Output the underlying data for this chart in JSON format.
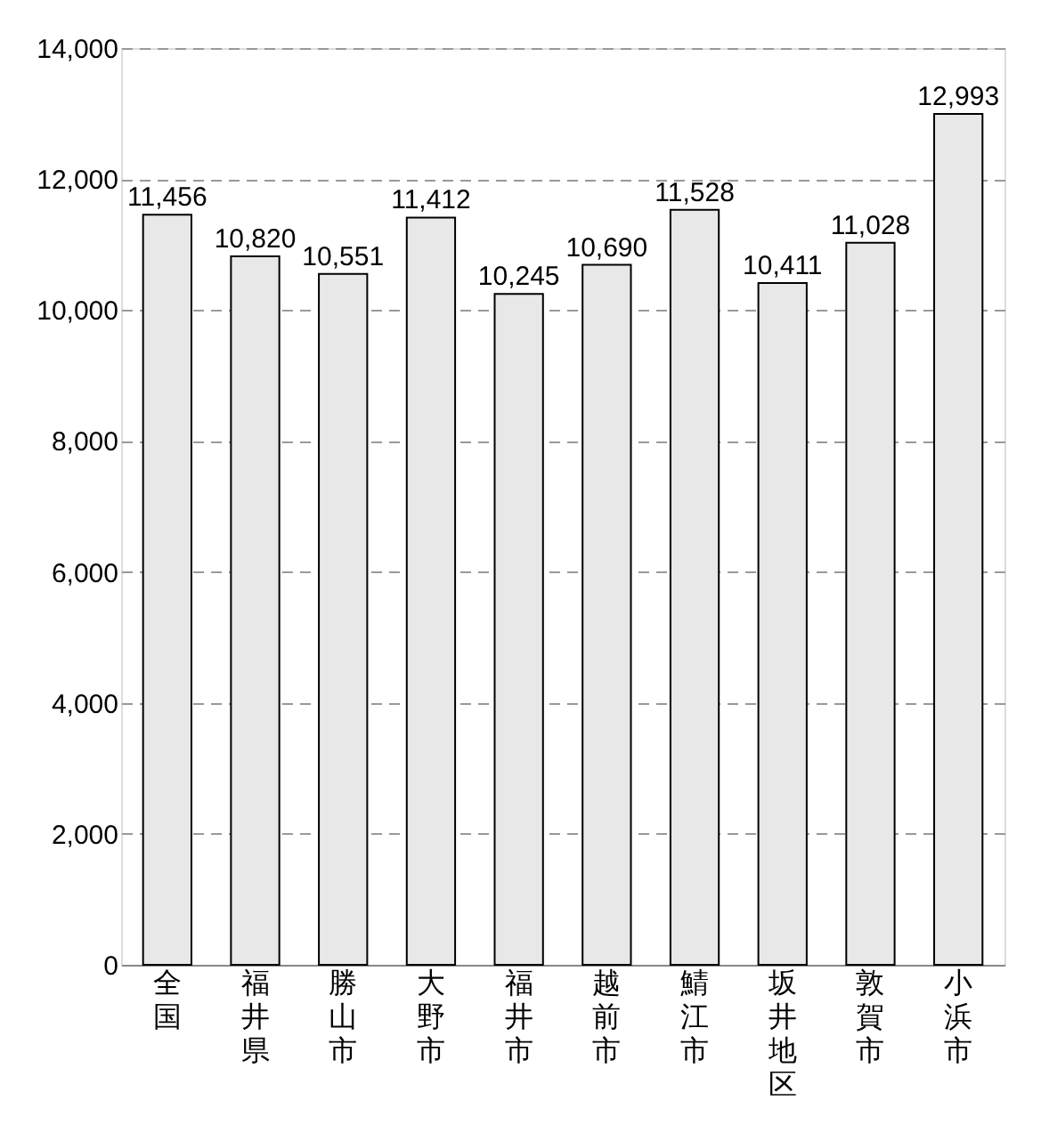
{
  "chart_data": {
    "type": "bar",
    "categories": [
      "全国",
      "福井県",
      "勝山市",
      "大野市",
      "福井市",
      "越前市",
      "鯖江市",
      "坂井地区",
      "敦賀市",
      "小浜市"
    ],
    "values": [
      11456,
      10820,
      10551,
      11412,
      10245,
      10690,
      11528,
      10411,
      11028,
      12993
    ],
    "value_labels": [
      "11,456",
      "10,820",
      "10,551",
      "11,412",
      "10,245",
      "10,690",
      "11,528",
      "10,411",
      "11,028",
      "12,993"
    ],
    "color": "#e8e8e8",
    "ylim": [
      0,
      14000
    ],
    "yticks": [
      0,
      {
        "value": 2000,
        "label": "2,000"
      },
      {
        "value": 4000,
        "label": "4,000"
      },
      {
        "value": 6000,
        "label": "6,000"
      },
      {
        "value": 8000,
        "label": "8,000"
      },
      {
        "value": 10000,
        "label": "10,000"
      },
      {
        "value": 12000,
        "label": "12,000"
      },
      {
        "value": 14000,
        "label": "14,000"
      }
    ],
    "grid": "y"
  }
}
